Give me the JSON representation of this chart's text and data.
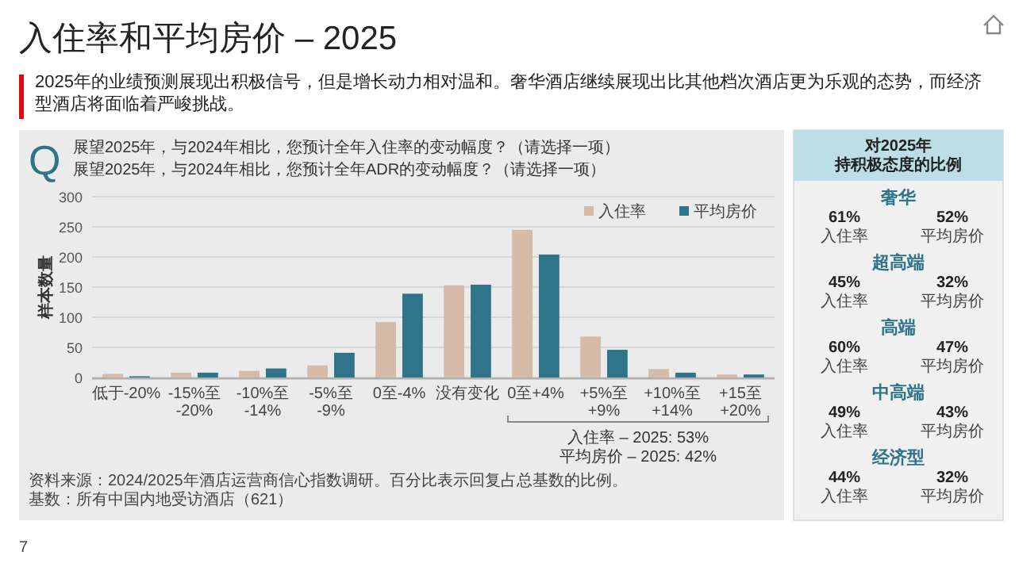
{
  "chart_data": [
    {
      "type": "bar",
      "title": "入住率和平均房价 – 2025",
      "subtitle": "2025年的业绩预测展现出积极信号，但是增长动力相对温和。奢华酒店继续展现出比其他档次酒店更为乐观的态势，而经济型酒店将面临着严峻挑战。",
      "ylabel": "样本数量",
      "categories": [
        "低于-20%",
        "-15%至-20%",
        "-10%至-14%",
        "-5%至-9%",
        "0至-4%",
        "没有变化",
        "0至+4%",
        "+5%至+9%",
        "+10%至+14%",
        "+15至+20%"
      ],
      "series": [
        {
          "name": "入住率",
          "color": "#d6bba8",
          "values": [
            6,
            8,
            11,
            20,
            92,
            153,
            245,
            68,
            14,
            5
          ]
        },
        {
          "name": "平均房价",
          "color": "#2f7489",
          "values": [
            2,
            8,
            15,
            41,
            139,
            154,
            204,
            46,
            8,
            5
          ]
        }
      ],
      "ylim": [
        0,
        300
      ],
      "yticks": [
        0,
        50,
        100,
        150,
        200,
        250,
        300
      ],
      "grid": "y",
      "legend": "top right",
      "annotations": [
        "Q",
        "展望2025年，与2024年相比，您预计全年入住率的变动幅度？（请选择一项）",
        "展望2025年，与2024年相比，您预计全年ADR的变动幅度？（请选择一项）",
        "入住率 – 2025: 53%",
        "平均房价 – 2025: 42%",
        "资料来源：2024/2025年酒店运营商信心指数调研。百分比表示回复占总基数的比例。",
        "基数：所有中国内地受访酒店（621）",
        "7"
      ]
    },
    {
      "type": "other",
      "title": "对2025年持积极态度的比例",
      "annotations": [
        "奢华",
        "61%",
        "入住率",
        "52%",
        "平均房价",
        "超高端",
        "45%",
        "入住率",
        "32%",
        "平均房价",
        "高端",
        "60%",
        "入住率",
        "47%",
        "平均房价",
        "中高端",
        "49%",
        "入住率",
        "43%",
        "平均房价",
        "经济型",
        "44%",
        "入住率",
        "32%",
        "平均房价"
      ]
    }
  ]
}
